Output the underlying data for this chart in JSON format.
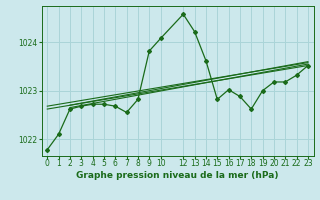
{
  "bg_color": "#cce8ec",
  "grid_color": "#aad4d8",
  "line_color": "#1a6b1a",
  "marker_color": "#1a6b1a",
  "xlim": [
    -0.5,
    23.5
  ],
  "ylim": [
    1021.65,
    1024.75
  ],
  "yticks": [
    1022,
    1023,
    1024
  ],
  "ytick_labels": [
    "1022",
    "1023",
    "1024"
  ],
  "xticks": [
    0,
    1,
    2,
    3,
    4,
    5,
    6,
    7,
    8,
    9,
    10,
    12,
    13,
    14,
    15,
    16,
    17,
    18,
    19,
    20,
    21,
    22,
    23
  ],
  "xlabel": "Graphe pression niveau de la mer (hPa)",
  "series": [
    [
      0,
      1021.78
    ],
    [
      1,
      1022.1
    ],
    [
      2,
      1022.62
    ],
    [
      3,
      1022.68
    ],
    [
      4,
      1022.72
    ],
    [
      5,
      1022.72
    ],
    [
      6,
      1022.68
    ],
    [
      7,
      1022.55
    ],
    [
      8,
      1022.82
    ],
    [
      9,
      1023.82
    ],
    [
      10,
      1024.08
    ],
    [
      12,
      1024.58
    ],
    [
      13,
      1024.22
    ],
    [
      14,
      1023.62
    ],
    [
      15,
      1022.82
    ],
    [
      16,
      1023.02
    ],
    [
      17,
      1022.88
    ],
    [
      18,
      1022.62
    ],
    [
      19,
      1023.0
    ],
    [
      20,
      1023.18
    ],
    [
      21,
      1023.18
    ],
    [
      22,
      1023.32
    ],
    [
      23,
      1023.52
    ]
  ],
  "trend_lines": [
    [
      [
        0,
        1022.62
      ],
      [
        23,
        1023.52
      ]
    ],
    [
      [
        0,
        1022.68
      ],
      [
        23,
        1023.58
      ]
    ],
    [
      [
        2,
        1022.65
      ],
      [
        23,
        1023.55
      ]
    ],
    [
      [
        2,
        1022.7
      ],
      [
        23,
        1023.6
      ]
    ]
  ],
  "tick_fontsize": 5.5,
  "xlabel_fontsize": 6.5
}
